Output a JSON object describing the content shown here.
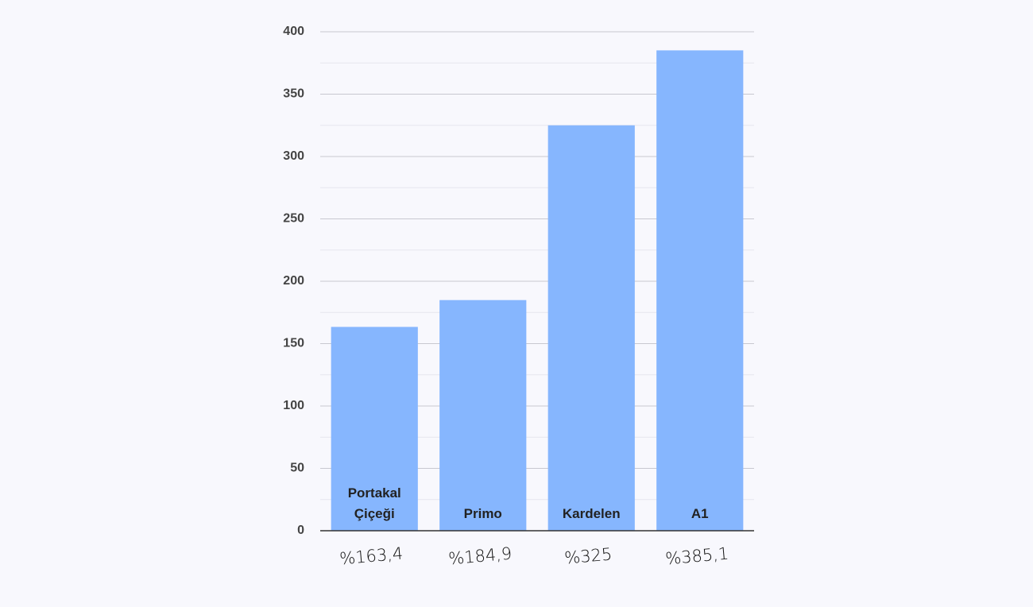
{
  "chart_data": {
    "type": "bar",
    "categories": [
      "Portakal Çiçeği",
      "Primo",
      "Kardelen",
      "A1"
    ],
    "values": [
      163.4,
      184.9,
      325,
      385.1
    ],
    "value_labels": [
      "%163,4",
      "%184,9",
      "%325",
      "%385,1"
    ],
    "color": "#86b6fe",
    "ylim": [
      0,
      400
    ],
    "yticks": [
      0,
      50,
      100,
      150,
      200,
      250,
      300,
      350,
      400
    ],
    "minor_yticks": [
      25,
      75,
      125,
      175,
      225,
      275,
      325,
      375
    ],
    "grid": true
  }
}
